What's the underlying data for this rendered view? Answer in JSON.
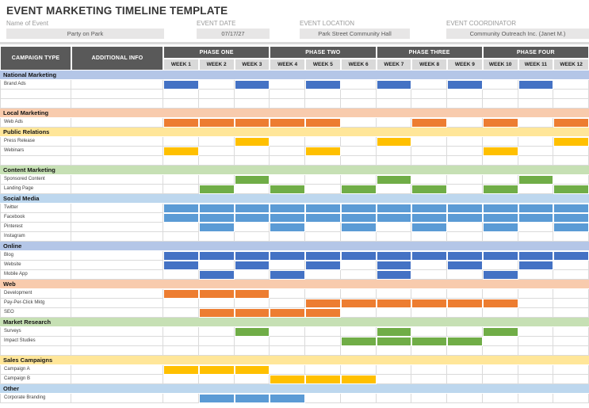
{
  "title": "EVENT MARKETING TIMELINE TEMPLATE",
  "fields": [
    {
      "label": "Name of Event",
      "value": "Party on Park"
    },
    {
      "label": "EVENT DATE",
      "value": "07/17/27"
    },
    {
      "label": "EVENT LOCATION",
      "value": "Park Street Community Hall"
    },
    {
      "label": "EVENT COORDINATOR",
      "value": "Community Outreach Inc. (Janet M.)"
    }
  ],
  "table": {
    "columns": {
      "campaign": "CAMPAIGN TYPE",
      "info": "ADDITIONAL INFO"
    },
    "phases": [
      {
        "label": "PHASE ONE",
        "weeks": [
          "WEEK 1",
          "WEEK 2",
          "WEEK 3"
        ]
      },
      {
        "label": "PHASE TWO",
        "weeks": [
          "WEEK 4",
          "WEEK 5",
          "WEEK 6"
        ]
      },
      {
        "label": "PHASE THREE",
        "weeks": [
          "WEEK 7",
          "WEEK 8",
          "WEEK 9"
        ]
      },
      {
        "label": "PHASE FOUR",
        "weeks": [
          "WEEK 10",
          "WEEK 11",
          "WEEK 12"
        ]
      }
    ],
    "rows": [
      {
        "type": "section",
        "label": "National Marketing",
        "color": "#B4C6E7"
      },
      {
        "type": "item",
        "label": "Brand Ads",
        "color": "#4472C4",
        "weeks": [
          1,
          3,
          5,
          7,
          9,
          11
        ]
      },
      {
        "type": "empty"
      },
      {
        "type": "empty"
      },
      {
        "type": "section",
        "label": "Local Marketing",
        "color": "#F8CBAD"
      },
      {
        "type": "item",
        "label": "Web Ads",
        "color": "#ED7D31",
        "weeks": [
          1,
          2,
          3,
          4,
          5,
          8,
          10,
          12
        ]
      },
      {
        "type": "section",
        "label": "Public Relations",
        "color": "#FFE699"
      },
      {
        "type": "item",
        "label": "Press Release",
        "color": "#FFC000",
        "weeks": [
          3,
          7,
          12
        ]
      },
      {
        "type": "item",
        "label": "Webinars",
        "color": "#FFC000",
        "weeks": [
          1,
          5,
          10
        ]
      },
      {
        "type": "empty"
      },
      {
        "type": "section",
        "label": "Content Marketing",
        "color": "#C6E0B4"
      },
      {
        "type": "item",
        "label": "Sponsored Content",
        "color": "#70AD47",
        "weeks": [
          3,
          7,
          11
        ]
      },
      {
        "type": "item",
        "label": "Landing Page",
        "color": "#70AD47",
        "weeks": [
          2,
          4,
          6,
          8,
          10,
          12
        ]
      },
      {
        "type": "section",
        "label": "Social Media",
        "color": "#BDD7EE"
      },
      {
        "type": "item",
        "label": "Twitter",
        "color": "#5B9BD5",
        "weeks": [
          1,
          2,
          3,
          4,
          5,
          6,
          7,
          8,
          9,
          10,
          11,
          12
        ]
      },
      {
        "type": "item",
        "label": "Facebook",
        "color": "#5B9BD5",
        "weeks": [
          1,
          2,
          3,
          4,
          5,
          6,
          7,
          8,
          9,
          10,
          11,
          12
        ]
      },
      {
        "type": "item",
        "label": "Pinterest",
        "color": "#5B9BD5",
        "weeks": [
          2,
          4,
          6,
          8,
          10,
          12
        ]
      },
      {
        "type": "item",
        "label": "Instagram",
        "color": "#5B9BD5",
        "weeks": []
      },
      {
        "type": "section",
        "label": "Online",
        "color": "#B4C6E7"
      },
      {
        "type": "item",
        "label": "Blog",
        "color": "#4472C4",
        "weeks": [
          1,
          2,
          3,
          4,
          5,
          6,
          7,
          8,
          9,
          10,
          11,
          12
        ]
      },
      {
        "type": "item",
        "label": "Website",
        "color": "#4472C4",
        "weeks": [
          1,
          3,
          5,
          7,
          9,
          11
        ]
      },
      {
        "type": "item",
        "label": "Mobile App",
        "color": "#4472C4",
        "weeks": [
          2,
          4,
          7,
          10
        ]
      },
      {
        "type": "section",
        "label": "Web",
        "color": "#F8CBAD"
      },
      {
        "type": "item",
        "label": "Development",
        "color": "#ED7D31",
        "weeks": [
          1,
          2,
          3
        ]
      },
      {
        "type": "item",
        "label": "Pay-Per-Click Mktg",
        "color": "#ED7D31",
        "weeks": [
          5,
          6,
          7,
          8,
          9,
          10
        ]
      },
      {
        "type": "item",
        "label": "SEO",
        "color": "#ED7D31",
        "weeks": [
          2,
          3,
          4,
          5
        ]
      },
      {
        "type": "section",
        "label": "Market Research",
        "color": "#C6E0B4"
      },
      {
        "type": "item",
        "label": "Surveys",
        "color": "#70AD47",
        "weeks": [
          3,
          7,
          10
        ]
      },
      {
        "type": "item",
        "label": "Impact Studies",
        "color": "#70AD47",
        "weeks": [
          6,
          7,
          8,
          9
        ]
      },
      {
        "type": "empty"
      },
      {
        "type": "section",
        "label": "Sales Campaigns",
        "color": "#FFE699"
      },
      {
        "type": "item",
        "label": "Campaign A",
        "color": "#FFC000",
        "weeks": [
          1,
          2,
          3
        ]
      },
      {
        "type": "item",
        "label": "Campaign B",
        "color": "#FFC000",
        "weeks": [
          4,
          5,
          6
        ]
      },
      {
        "type": "section",
        "label": "Other",
        "color": "#BDD7EE"
      },
      {
        "type": "item",
        "label": "Corporate Branding",
        "color": "#5B9BD5",
        "weeks": [
          2,
          3,
          4
        ]
      }
    ]
  },
  "colors": {
    "header_dark": "#595959",
    "week_header_bg": "#D9D9D9",
    "grid_line": "#DADADA",
    "field_box_bg": "#E7E6E6"
  }
}
